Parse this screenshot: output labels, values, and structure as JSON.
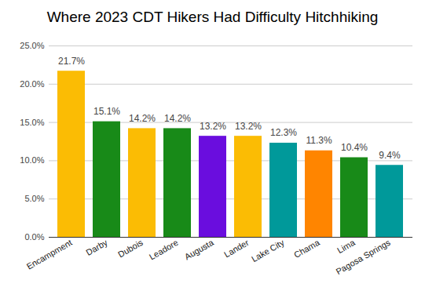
{
  "chart_data": {
    "type": "bar",
    "title": "Where 2023 CDT Hikers Had Difficulty Hitchhiking",
    "categories": [
      "Encampment",
      "Darby",
      "Dubois",
      "Leadore",
      "Augusta",
      "Lander",
      "Lake City",
      "Chama",
      "Lima",
      "Pagosa Springs"
    ],
    "values": [
      21.7,
      15.1,
      14.2,
      14.2,
      13.2,
      13.2,
      12.3,
      11.3,
      10.4,
      9.4
    ],
    "value_labels": [
      "21.7%",
      "15.1%",
      "14.2%",
      "14.2%",
      "13.2%",
      "13.2%",
      "12.3%",
      "11.3%",
      "10.4%",
      "9.4%"
    ],
    "colors": [
      "#fbbc04",
      "#188a18",
      "#fbbc04",
      "#188a18",
      "#6a0dde",
      "#fbbc04",
      "#00999a",
      "#ff8500",
      "#188a18",
      "#00999a"
    ],
    "ylim": [
      0,
      25
    ],
    "yticks": [
      {
        "value": 0,
        "label": "0.0%"
      },
      {
        "value": 5,
        "label": "5.0%"
      },
      {
        "value": 10,
        "label": "10.0%"
      },
      {
        "value": 15,
        "label": "15.0%"
      },
      {
        "value": 20,
        "label": "20.0%"
      },
      {
        "value": 25,
        "label": "25.0%"
      }
    ],
    "grid": true,
    "data_labels": true
  }
}
